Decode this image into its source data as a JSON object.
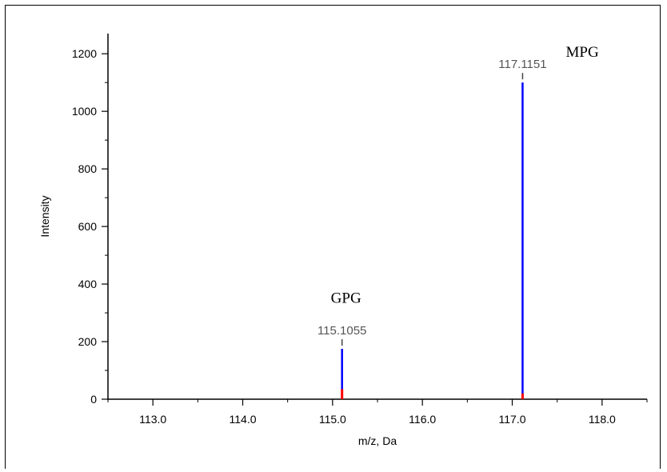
{
  "chart_data": {
    "type": "bar",
    "title": "",
    "xlabel": "m/z, Da",
    "ylabel": "Intensity",
    "xlim": [
      112.5,
      118.5
    ],
    "ylim": [
      0,
      1270
    ],
    "x_ticks": [
      113.0,
      114.0,
      115.0,
      116.0,
      117.0,
      118.0
    ],
    "x_tick_labels": [
      "113.0",
      "114.0",
      "115.0",
      "116.0",
      "117.0",
      "118.0"
    ],
    "y_ticks": [
      0,
      200,
      400,
      600,
      800,
      1000,
      1200
    ],
    "y_tick_labels": [
      "0",
      "200",
      "400",
      "600",
      "800",
      "1000",
      "1200"
    ],
    "peaks": [
      {
        "mz": 115.1055,
        "intensity": 175,
        "label": "115.1055",
        "color": "#0000ff"
      },
      {
        "mz": 117.1151,
        "intensity": 1100,
        "label": "117.1151",
        "color": "#0000ff"
      }
    ],
    "baseline_markers": [
      {
        "mz": 115.1055,
        "intensity": 35,
        "color": "#ff0000"
      },
      {
        "mz": 117.1151,
        "intensity": 20,
        "color": "#ff0000"
      }
    ],
    "annotations": [
      {
        "text": "GPG",
        "mz": 115.15,
        "intensity": 335
      },
      {
        "text": "MPG",
        "mz": 117.78,
        "intensity": 1190
      }
    ],
    "grid": false
  }
}
